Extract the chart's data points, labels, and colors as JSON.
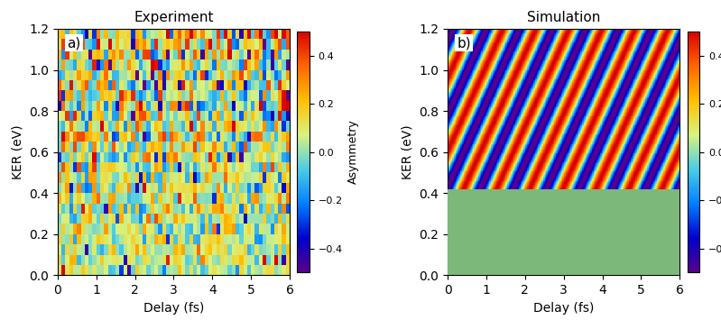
{
  "title_left": "Experiment",
  "title_right": "Simulation",
  "label_a": "a)",
  "label_b": "b)",
  "xlabel": "Delay (fs)",
  "ylabel": "KER (eV)",
  "colorbar_label": "Asymmetry",
  "xlim": [
    0,
    6
  ],
  "ylim": [
    0.0,
    1.2
  ],
  "xticks": [
    0,
    1,
    2,
    3,
    4,
    5,
    6
  ],
  "yticks": [
    0.0,
    0.2,
    0.4,
    0.6,
    0.8,
    1.0,
    1.2
  ],
  "vmin": -0.5,
  "vmax": 0.5,
  "cbar_ticks": [
    -0.4,
    -0.2,
    0,
    0.2,
    0.4
  ],
  "nx_exp": 60,
  "ny_exp": 24,
  "nx_sim": 400,
  "ny_sim": 300,
  "sim_ker_threshold": 0.42,
  "green_color": "#7cb87a",
  "noise_seed": 42,
  "sim_amplitude": 0.5,
  "colormap": "RdYlBu_r",
  "figsize": [
    7.99,
    3.55
  ],
  "dpi": 100
}
